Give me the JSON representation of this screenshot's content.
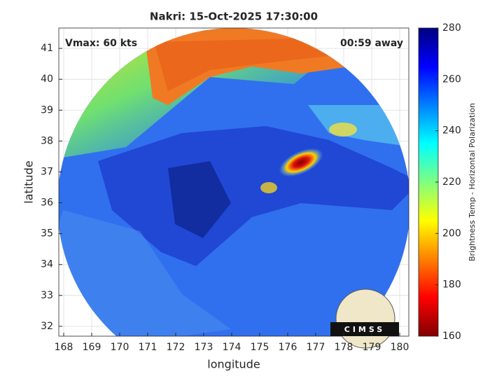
{
  "chart_data": {
    "type": "image-map",
    "title": "Nakri: 15-Oct-2025 17:30:00",
    "annotations": [
      "Vmax: 60 kts",
      "00:59 away"
    ],
    "x_label": "longitude",
    "y_label": "latitude",
    "xlim": [
      167.825,
      180.325
    ],
    "ylim": [
      31.68,
      41.66
    ],
    "xticks": [
      168,
      169,
      170,
      171,
      172,
      173,
      174,
      175,
      176,
      177,
      178,
      179,
      180
    ],
    "yticks": [
      32,
      33,
      34,
      35,
      36,
      37,
      38,
      39,
      40,
      41
    ],
    "grid": true,
    "colorbar": {
      "label": "Brightness Temp - Horizontal Polarization",
      "colormap": "jet",
      "lim": [
        160,
        280
      ],
      "ticks": [
        160,
        180,
        200,
        220,
        240,
        260,
        280
      ]
    },
    "logo": "CIMSS"
  }
}
